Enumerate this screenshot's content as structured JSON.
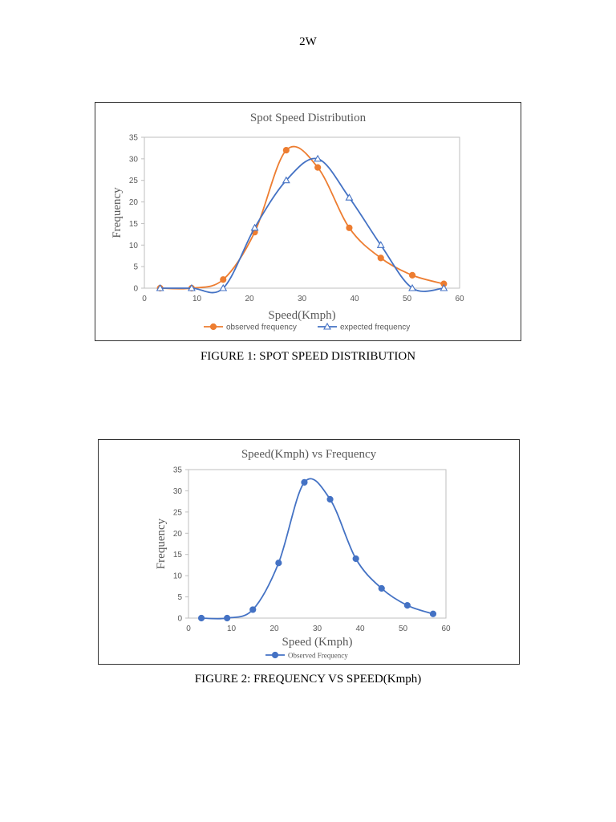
{
  "header": {
    "page_label": "2W"
  },
  "captions": {
    "figure1": "FIGURE 1: SPOT SPEED DISTRIBUTION",
    "figure2": "FIGURE 2: FREQUENCY VS SPEED(Kmph)"
  },
  "colors": {
    "observed": "#ED7D31",
    "expected": "#4472C4",
    "observed2": "#4472C4",
    "axis": "#BFBFBF"
  },
  "chart_data": [
    {
      "type": "line",
      "title": "Spot Speed Distribution",
      "xlabel": "Speed(Kmph)",
      "ylabel": "Frequency",
      "xlim": [
        0,
        60
      ],
      "ylim": [
        0,
        35
      ],
      "xticks": [
        0,
        10,
        20,
        30,
        40,
        50,
        60
      ],
      "yticks": [
        0,
        5,
        10,
        15,
        20,
        25,
        30,
        35
      ],
      "grid": false,
      "legend": "bottom",
      "series": [
        {
          "name": "observed frequency",
          "marker": "circle",
          "x": [
            3,
            9,
            15,
            21,
            27,
            33,
            39,
            45,
            51,
            57
          ],
          "y": [
            0,
            0,
            2,
            13,
            32,
            28,
            14,
            7,
            3,
            1
          ]
        },
        {
          "name": "expected frequency",
          "marker": "triangle",
          "x": [
            3,
            9,
            15,
            21,
            27,
            33,
            39,
            45,
            51,
            57
          ],
          "y": [
            0,
            0,
            0,
            14,
            25,
            30,
            21,
            10,
            0,
            0
          ]
        }
      ]
    },
    {
      "type": "line",
      "title": "Speed(Kmph) vs Frequency",
      "xlabel": "Speed (Kmph)",
      "ylabel": "Frequency",
      "xlim": [
        0,
        60
      ],
      "ylim": [
        0,
        35
      ],
      "xticks": [
        0,
        10,
        20,
        30,
        40,
        50,
        60
      ],
      "yticks": [
        0,
        5,
        10,
        15,
        20,
        25,
        30,
        35
      ],
      "grid": false,
      "legend": "bottom",
      "series": [
        {
          "name": "Observed Frequency",
          "marker": "circle",
          "x": [
            3,
            9,
            15,
            21,
            27,
            33,
            39,
            45,
            51,
            57
          ],
          "y": [
            0,
            0,
            2,
            13,
            32,
            28,
            14,
            7,
            3,
            1
          ]
        }
      ]
    }
  ]
}
